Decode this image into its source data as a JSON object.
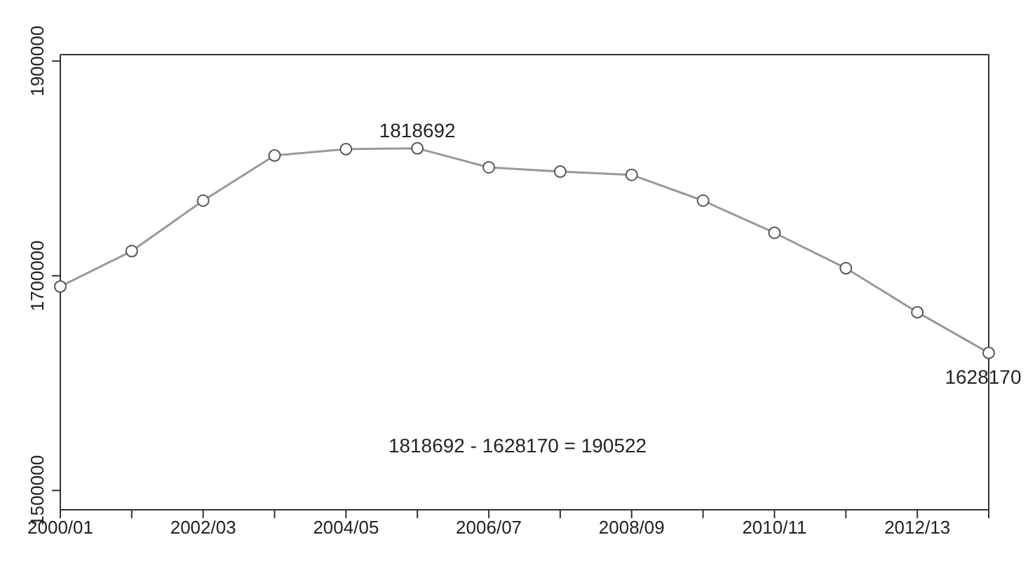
{
  "chart_data": {
    "type": "line",
    "categories": [
      "2000/01",
      null,
      "2002/03",
      null,
      "2004/05",
      null,
      "2006/07",
      null,
      "2008/09",
      null,
      "2010/11",
      null,
      "2012/13",
      null
    ],
    "series": [
      {
        "color": "#999999",
        "values": [
          1690000,
          1723000,
          1770000,
          1812000,
          1818000,
          1818692,
          1801000,
          1797000,
          1794000,
          1770000,
          1740000,
          1707000,
          1666000,
          1628170
        ],
        "value_labels": [
          null,
          null,
          null,
          null,
          null,
          "1818692",
          null,
          null,
          null,
          null,
          null,
          null,
          null,
          "1628170"
        ]
      }
    ],
    "ylim": [
      1482000,
      1906000
    ],
    "yticks": [
      1500000,
      1700000,
      1900000
    ],
    "grid": false,
    "marker": "circle",
    "line_style": "solid",
    "annotations": [
      "1818692 - 1628170 = 190522"
    ]
  }
}
